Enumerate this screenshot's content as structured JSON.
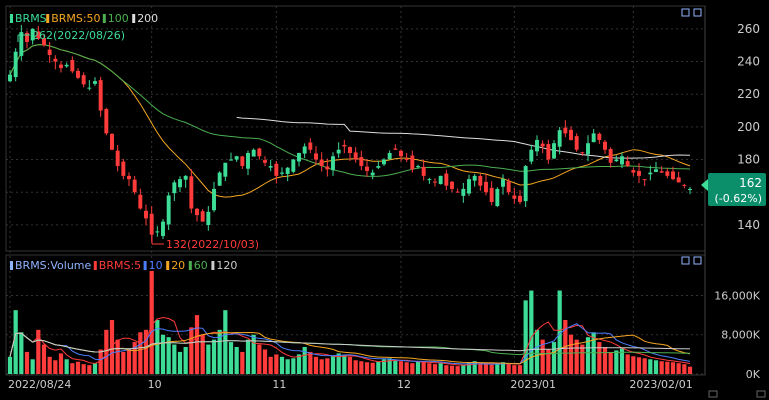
{
  "colors": {
    "up": "#3ddc97",
    "down": "#ff3b3b",
    "ma50": "#f5a623",
    "ma100": "#4caf50",
    "ma200": "#dddddd",
    "vol_ma5": "#ff3b3b",
    "vol_ma10": "#4d7dff",
    "vol_ma20": "#f5a623",
    "vol_ma60": "#4caf50",
    "vol_ma120": "#cccccc",
    "grid": "#333333",
    "text": "#cccccc",
    "last_price_bg": "#0a8f6a"
  },
  "price_legend": [
    {
      "label": "BRMS",
      "color": "#3ddc97"
    },
    {
      "label": "BRMS:50",
      "color": "#f5a623"
    },
    {
      "label": "100",
      "color": "#4caf50"
    },
    {
      "label": "200",
      "color": "#dddddd"
    }
  ],
  "volume_legend": [
    {
      "label": "BRMS:Volume",
      "color": "#8fb3ff"
    },
    {
      "label": "BRMS:5",
      "color": "#ff3b3b"
    },
    {
      "label": "10",
      "color": "#4d7dff"
    },
    {
      "label": "20",
      "color": "#f5a623"
    },
    {
      "label": "60",
      "color": "#4caf50"
    },
    {
      "label": "120",
      "color": "#cccccc"
    }
  ],
  "annotations": {
    "high": "262(2022/08/26)",
    "low": "132(2022/10/03)"
  },
  "last_price": {
    "price": "162",
    "change": "(-0.62%)"
  },
  "chart_data": {
    "type": "candlestick",
    "price_axis": {
      "ticks": [
        140,
        160,
        180,
        200,
        220,
        240,
        260
      ],
      "tick_labels": [
        "140",
        "160",
        "180",
        "200",
        "220",
        "240",
        "260"
      ],
      "range": [
        124,
        274
      ]
    },
    "volume_axis": {
      "ticks": [
        0,
        8000,
        16000
      ],
      "tick_labels": [
        "0K",
        "8,000K",
        "16,000K"
      ],
      "range": [
        0,
        22000
      ]
    },
    "x_tick_labels": [
      {
        "index": 0,
        "label": "2022/08/24"
      },
      {
        "index": 25,
        "label": "10"
      },
      {
        "index": 47,
        "label": "11"
      },
      {
        "index": 69,
        "label": "12"
      },
      {
        "index": 89,
        "label": "2023/01"
      },
      {
        "index": 110,
        "label": "2023/02/01"
      }
    ],
    "close": [
      232,
      246,
      258,
      252,
      260,
      254,
      250,
      244,
      240,
      236,
      238,
      234,
      230,
      226,
      224,
      228,
      210,
      196,
      186,
      176,
      170,
      168,
      160,
      150,
      144,
      134,
      136,
      142,
      158,
      166,
      168,
      170,
      150,
      146,
      142,
      148,
      162,
      172,
      178,
      180,
      182,
      176,
      184,
      186,
      182,
      178,
      176,
      170,
      172,
      175,
      180,
      184,
      188,
      186,
      180,
      176,
      174,
      182,
      186,
      188,
      184,
      180,
      176,
      173,
      172,
      176,
      180,
      184,
      186,
      182,
      180,
      174,
      176,
      170,
      168,
      166,
      170,
      164,
      162,
      160,
      162,
      168,
      170,
      164,
      160,
      154,
      162,
      168,
      160,
      156,
      154,
      176,
      186,
      192,
      188,
      180,
      190,
      198,
      196,
      192,
      186,
      184,
      190,
      196,
      192,
      186,
      178,
      180,
      182,
      176,
      172,
      170,
      168,
      172,
      174,
      172,
      170,
      168,
      166,
      164,
      162
    ]
  },
  "volume_data": {
    "values": [
      3500,
      13000,
      8500,
      4500,
      3000,
      9000,
      6000,
      3500,
      2800,
      4200,
      3000,
      2200,
      2500,
      2000,
      1800,
      2200,
      5000,
      9000,
      11000,
      7000,
      4500,
      5000,
      6500,
      8500,
      9000,
      21000,
      11000,
      8000,
      7500,
      6000,
      4500,
      5500,
      9500,
      12000,
      8000,
      6000,
      7000,
      9000,
      13000,
      6500,
      5500,
      4500,
      7000,
      8000,
      6000,
      5000,
      3500,
      4000,
      3500,
      3000,
      3200,
      4000,
      5500,
      4500,
      3500,
      3000,
      3200,
      3800,
      4200,
      3900,
      3500,
      2800,
      2600,
      2400,
      2300,
      2500,
      3000,
      3200,
      2800,
      2600,
      2400,
      2200,
      2600,
      2400,
      2200,
      2000,
      2200,
      1800,
      1700,
      1600,
      1800,
      2400,
      2600,
      2200,
      2000,
      1900,
      2200,
      2400,
      2000,
      1800,
      1800,
      15000,
      17000,
      9000,
      7000,
      5000,
      6500,
      17000,
      11000,
      8000,
      7000,
      6000,
      7500,
      8500,
      6500,
      5500,
      4500,
      4800,
      5200,
      4000,
      3600,
      3400,
      3200,
      3000,
      2800,
      2600,
      2500,
      2400,
      2200,
      2000,
      1500
    ]
  }
}
